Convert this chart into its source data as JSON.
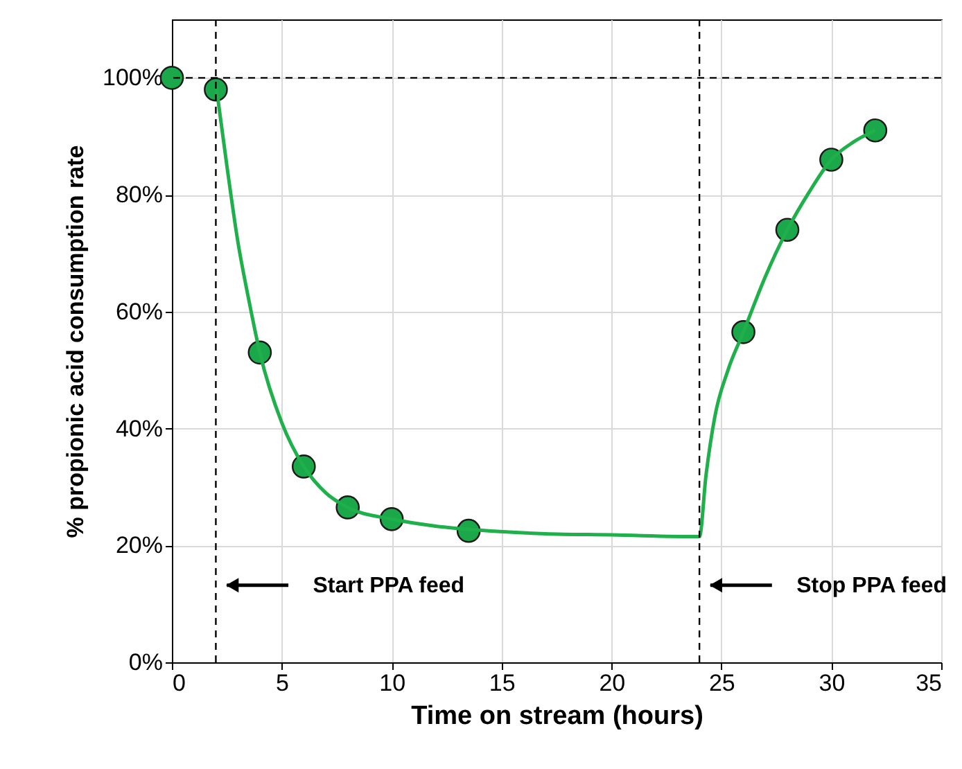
{
  "chart_data": {
    "type": "scatter",
    "xlabel": "Time on stream (hours)",
    "ylabel": "% propionic acid consumption rate",
    "series": [
      {
        "type": "scatter",
        "color": "#1aa84a",
        "x": [
          0,
          2,
          4,
          6,
          8,
          10,
          13.5,
          26,
          28,
          30,
          32
        ],
        "values": [
          100,
          98,
          53,
          33.5,
          26.5,
          24.5,
          22.5,
          56.5,
          74,
          86,
          91
        ]
      },
      {
        "type": "line",
        "color": "#1fb04b",
        "marker": "none",
        "x": [
          2,
          2.5,
          3,
          3.5,
          4,
          5,
          6,
          7,
          8,
          10,
          12,
          14,
          17,
          20,
          24,
          24.3,
          24.7,
          25.3,
          26,
          27,
          28,
          29,
          30,
          31,
          32
        ],
        "values": [
          99,
          85,
          72,
          62,
          53,
          41,
          33.5,
          29,
          26.5,
          24.5,
          23.3,
          22.6,
          22,
          21.8,
          21.5,
          32,
          42,
          50,
          56.5,
          66,
          74,
          80.5,
          86,
          89,
          91
        ]
      }
    ],
    "marker": "circle",
    "xlim": [
      0,
      35
    ],
    "xticks": [
      0,
      5,
      10,
      15,
      20,
      25,
      30,
      35
    ],
    "ylim": [
      0,
      110
    ],
    "yticks": [
      {
        "value": 0,
        "label": "0%"
      },
      {
        "value": 20,
        "label": "20%"
      },
      {
        "value": 40,
        "label": "40%"
      },
      {
        "value": 60,
        "label": "60%"
      },
      {
        "value": 80,
        "label": "80%"
      },
      {
        "value": 100,
        "label": "100%"
      }
    ],
    "grid": true,
    "ref_lines": [
      {
        "axis": "x",
        "value": 2,
        "line_style": "dashed",
        "color": "#000000"
      },
      {
        "axis": "x",
        "value": 24,
        "line_style": "dashed",
        "color": "#000000"
      },
      {
        "axis": "y",
        "value": 100,
        "line_style": "dashed",
        "color": "#000000"
      }
    ],
    "annotations": [
      "Start PPA feed",
      "Stop PPA feed"
    ]
  }
}
